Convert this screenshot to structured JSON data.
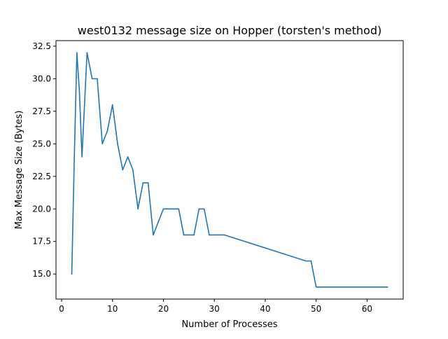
{
  "chart_data": {
    "type": "line",
    "title": "west0132 message size on Hopper (torsten's method)",
    "xlabel": "Number of Processes",
    "ylabel": "Max Message Size (Bytes)",
    "xlim": [
      -1.1,
      67.1
    ],
    "ylim": [
      13.075,
      32.925
    ],
    "xticks": [
      0,
      10,
      20,
      30,
      40,
      50,
      60
    ],
    "yticks": [
      15.0,
      17.5,
      20.0,
      22.5,
      25.0,
      27.5,
      30.0,
      32.5
    ],
    "xtick_labels": [
      "0",
      "10",
      "20",
      "30",
      "40",
      "50",
      "60"
    ],
    "ytick_labels": [
      "15.0",
      "17.5",
      "20.0",
      "22.5",
      "25.0",
      "27.5",
      "30.0",
      "32.5"
    ],
    "grid": false,
    "legend": "none",
    "series": [
      {
        "color": "#1f77b4",
        "x": [
          2,
          2.5,
          3,
          3.5,
          4,
          4.5,
          5,
          6,
          7,
          8,
          9,
          10,
          11,
          12,
          13,
          14,
          15,
          16,
          17,
          18,
          20,
          23,
          24,
          26,
          27,
          28,
          29,
          32,
          48,
          49,
          50,
          64
        ],
        "y": [
          15,
          24,
          32,
          29,
          24,
          28,
          32,
          30,
          30,
          25,
          26,
          28,
          25,
          23,
          24,
          23,
          20,
          22,
          22,
          18,
          20,
          20,
          18,
          18,
          20,
          20,
          18,
          18,
          16,
          16,
          14,
          14
        ]
      }
    ]
  }
}
